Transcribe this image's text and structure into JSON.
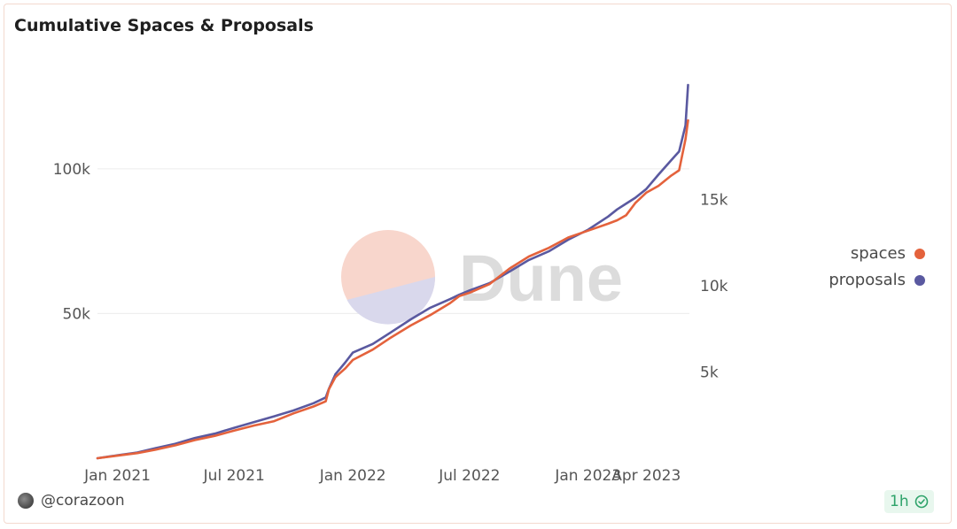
{
  "title": "Cumulative Spaces & Proposals",
  "author": "@corazoon",
  "refresh_badge": "1h",
  "watermark": "Dune",
  "colors": {
    "spaces": "#e4623c",
    "proposals": "#5a59a0"
  },
  "chart_data": {
    "type": "line",
    "title": "Cumulative Spaces & Proposals",
    "x_ticks": [
      "Jan 2021",
      "Jul 2021",
      "Jan 2022",
      "Jul 2022",
      "Jan 2023",
      "Apr 2023"
    ],
    "left_axis": {
      "ticks": [
        "50k",
        "100k"
      ],
      "tick_values": [
        50000,
        100000
      ],
      "range": [
        0,
        140000
      ]
    },
    "right_axis": {
      "ticks": [
        "5k",
        "10k",
        "15k"
      ],
      "tick_values": [
        5000,
        10000,
        15000
      ],
      "range": [
        0,
        23500
      ]
    },
    "legend": {
      "position": "right",
      "entries": [
        "spaces",
        "proposals"
      ]
    },
    "grid": true,
    "series": [
      {
        "name": "spaces",
        "axis": "right",
        "color": "#e4623c",
        "x": [
          "2020-12-01",
          "2021-01-01",
          "2021-02-01",
          "2021-03-01",
          "2021-04-01",
          "2021-05-01",
          "2021-06-01",
          "2021-07-01",
          "2021-08-01",
          "2021-09-01",
          "2021-10-01",
          "2021-11-01",
          "2021-11-20",
          "2021-11-25",
          "2021-12-05",
          "2021-12-20",
          "2022-01-01",
          "2022-02-01",
          "2022-03-01",
          "2022-04-01",
          "2022-05-01",
          "2022-06-01",
          "2022-06-15",
          "2022-07-01",
          "2022-08-01",
          "2022-09-01",
          "2022-10-01",
          "2022-11-01",
          "2022-12-01",
          "2023-01-01",
          "2023-02-01",
          "2023-02-15",
          "2023-03-01",
          "2023-03-15",
          "2023-04-01",
          "2023-04-20",
          "2023-05-10",
          "2023-05-22",
          "2023-06-01",
          "2023-06-05"
        ],
        "y": [
          0,
          150,
          300,
          500,
          750,
          1050,
          1300,
          1600,
          1900,
          2150,
          2600,
          3000,
          3300,
          4000,
          4700,
          5200,
          5700,
          6300,
          7000,
          7700,
          8300,
          9000,
          9400,
          9600,
          10100,
          11000,
          11700,
          12200,
          12800,
          13200,
          13600,
          13800,
          14100,
          14800,
          15400,
          15800,
          16400,
          16700,
          18500,
          19600
        ]
      },
      {
        "name": "proposals",
        "axis": "left",
        "color": "#5a59a0",
        "x": [
          "2020-12-01",
          "2021-01-01",
          "2021-02-01",
          "2021-03-01",
          "2021-04-01",
          "2021-05-01",
          "2021-06-01",
          "2021-07-01",
          "2021-08-01",
          "2021-09-01",
          "2021-10-01",
          "2021-11-01",
          "2021-11-20",
          "2021-11-25",
          "2021-12-05",
          "2021-12-20",
          "2022-01-01",
          "2022-02-01",
          "2022-03-01",
          "2022-04-01",
          "2022-05-01",
          "2022-06-01",
          "2022-06-15",
          "2022-07-01",
          "2022-08-01",
          "2022-09-01",
          "2022-10-01",
          "2022-11-01",
          "2022-12-01",
          "2023-01-01",
          "2023-02-01",
          "2023-02-15",
          "2023-03-01",
          "2023-03-15",
          "2023-04-01",
          "2023-04-20",
          "2023-05-10",
          "2023-05-22",
          "2023-06-01",
          "2023-06-05"
        ],
        "y": [
          0,
          1000,
          2000,
          3500,
          5000,
          7000,
          8500,
          10500,
          12500,
          14500,
          16500,
          19000,
          21000,
          24000,
          29000,
          33000,
          36500,
          39500,
          43500,
          48000,
          52000,
          55000,
          56500,
          58000,
          60500,
          64500,
          68500,
          71500,
          75500,
          79000,
          83500,
          86000,
          88000,
          90000,
          93000,
          98000,
          103000,
          106000,
          115000,
          129000
        ]
      }
    ]
  }
}
